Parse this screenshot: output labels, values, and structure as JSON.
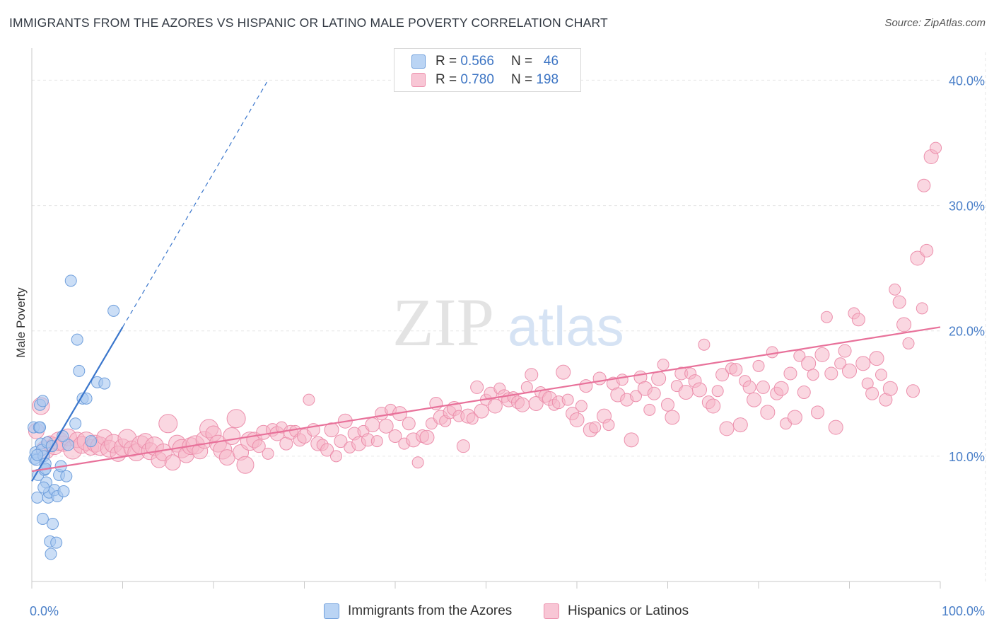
{
  "title": "IMMIGRANTS FROM THE AZORES VS HISPANIC OR LATINO MALE POVERTY CORRELATION CHART",
  "source": "Source: ZipAtlas.com",
  "watermark": {
    "zip": "ZIP",
    "atlas": "atlas"
  },
  "colors": {
    "blue_fill": "#a9c8f0",
    "blue_stroke": "#6f9fdc",
    "blue_line": "#3a76cc",
    "pink_fill": "#f5b6c9",
    "pink_stroke": "#ec8fac",
    "pink_line": "#e8719a",
    "tick_label": "#4a7fc8",
    "grid": "#e6e6e6"
  },
  "legend": {
    "rows": [
      {
        "r_label": "R =",
        "r_value": "0.566",
        "n_label": "N =",
        "n_value": "46"
      },
      {
        "r_label": "R =",
        "r_value": "0.780",
        "n_label": "N =",
        "n_value": "198"
      }
    ]
  },
  "chart_data": {
    "type": "scatter",
    "title": "IMMIGRANTS FROM THE AZORES VS HISPANIC OR LATINO MALE POVERTY CORRELATION CHART",
    "xlabel": "",
    "ylabel": "Male Poverty",
    "xlim": [
      0,
      100
    ],
    "ylim": [
      0,
      42
    ],
    "x_tick_labels": [
      "0.0%",
      "100.0%"
    ],
    "y_ticks": [
      10,
      20,
      30,
      40
    ],
    "y_tick_labels": [
      "10.0%",
      "20.0%",
      "30.0%",
      "40.0%"
    ],
    "grid": true,
    "legend_position": "top-center",
    "series": [
      {
        "name": "Immigrants from the Azores",
        "r": 0.566,
        "n": 46,
        "trend": {
          "x": [
            0,
            10
          ],
          "y": [
            8.0,
            20.3
          ],
          "dashed_to": [
            26,
            40
          ]
        },
        "points": [
          [
            0.2,
            12.3
          ],
          [
            0.3,
            9.8
          ],
          [
            0.4,
            10.3
          ],
          [
            0.5,
            9.7
          ],
          [
            0.6,
            6.7
          ],
          [
            0.7,
            8.5
          ],
          [
            0.8,
            12.3
          ],
          [
            0.9,
            14.1
          ],
          [
            1.0,
            11.0
          ],
          [
            1.1,
            10.5
          ],
          [
            1.2,
            14.4
          ],
          [
            1.3,
            10.0
          ],
          [
            1.4,
            8.9
          ],
          [
            1.5,
            9.4
          ],
          [
            1.6,
            7.9
          ],
          [
            1.7,
            11.1
          ],
          [
            1.8,
            6.7
          ],
          [
            1.9,
            7.1
          ],
          [
            2.0,
            3.2
          ],
          [
            2.1,
            2.2
          ],
          [
            2.3,
            4.6
          ],
          [
            2.5,
            7.3
          ],
          [
            2.7,
            3.1
          ],
          [
            2.8,
            6.8
          ],
          [
            3.0,
            8.5
          ],
          [
            3.2,
            9.2
          ],
          [
            3.5,
            7.2
          ],
          [
            3.8,
            8.4
          ],
          [
            4.0,
            10.9
          ],
          [
            4.3,
            24.0
          ],
          [
            4.8,
            12.6
          ],
          [
            5.0,
            19.3
          ],
          [
            5.2,
            16.8
          ],
          [
            5.6,
            14.6
          ],
          [
            6.0,
            14.6
          ],
          [
            6.5,
            11.2
          ],
          [
            7.2,
            15.9
          ],
          [
            8.0,
            15.8
          ],
          [
            9.0,
            21.6
          ],
          [
            1.2,
            5.0
          ],
          [
            0.6,
            10.1
          ],
          [
            1.5,
            9.0
          ],
          [
            2.2,
            10.8
          ],
          [
            0.9,
            12.3
          ],
          [
            1.3,
            7.5
          ],
          [
            3.4,
            11.6
          ]
        ]
      },
      {
        "name": "Hispanics or Latinos",
        "r": 0.78,
        "n": 198,
        "trend": {
          "x": [
            0,
            100
          ],
          "y": [
            8.8,
            20.3
          ]
        },
        "points": [
          [
            0.5,
            12.0
          ],
          [
            1.0,
            14.0
          ],
          [
            1.5,
            10.5
          ],
          [
            2.0,
            11.0
          ],
          [
            2.5,
            10.8
          ],
          [
            3.0,
            11.2
          ],
          [
            3.5,
            11.0
          ],
          [
            4.0,
            11.5
          ],
          [
            4.5,
            10.5
          ],
          [
            5.0,
            11.3
          ],
          [
            5.5,
            10.9
          ],
          [
            6.0,
            11.2
          ],
          [
            6.5,
            10.7
          ],
          [
            7.0,
            11.0
          ],
          [
            7.5,
            10.8
          ],
          [
            8.0,
            11.5
          ],
          [
            8.5,
            10.6
          ],
          [
            9.0,
            11.0
          ],
          [
            9.5,
            10.2
          ],
          [
            10.0,
            10.7
          ],
          [
            10.5,
            11.4
          ],
          [
            11.0,
            10.6
          ],
          [
            11.5,
            10.3
          ],
          [
            12.0,
            10.9
          ],
          [
            12.5,
            11.2
          ],
          [
            13.0,
            10.4
          ],
          [
            13.5,
            10.8
          ],
          [
            14.0,
            9.7
          ],
          [
            14.5,
            10.3
          ],
          [
            15.0,
            12.6
          ],
          [
            15.5,
            9.5
          ],
          [
            16.0,
            11.0
          ],
          [
            16.5,
            10.6
          ],
          [
            17.0,
            10.1
          ],
          [
            17.5,
            10.8
          ],
          [
            18.0,
            10.9
          ],
          [
            18.5,
            10.4
          ],
          [
            19.0,
            11.3
          ],
          [
            19.5,
            12.2
          ],
          [
            20.0,
            11.8
          ],
          [
            20.5,
            11.0
          ],
          [
            21.0,
            10.5
          ],
          [
            21.5,
            9.9
          ],
          [
            22.0,
            11.6
          ],
          [
            22.5,
            13.0
          ],
          [
            23.0,
            10.3
          ],
          [
            23.5,
            9.3
          ],
          [
            24.0,
            11.2
          ],
          [
            24.5,
            11.3
          ],
          [
            25.0,
            10.8
          ],
          [
            25.5,
            11.9
          ],
          [
            26.0,
            10.2
          ],
          [
            26.5,
            12.1
          ],
          [
            27.0,
            11.8
          ],
          [
            27.5,
            12.3
          ],
          [
            28.0,
            11.0
          ],
          [
            28.5,
            11.9
          ],
          [
            29.0,
            12.0
          ],
          [
            29.5,
            11.3
          ],
          [
            30.0,
            11.6
          ],
          [
            30.5,
            14.5
          ],
          [
            31.0,
            12.1
          ],
          [
            31.5,
            11.0
          ],
          [
            32.0,
            10.9
          ],
          [
            32.5,
            10.5
          ],
          [
            33.0,
            12.1
          ],
          [
            33.5,
            10.0
          ],
          [
            34.0,
            11.2
          ],
          [
            34.5,
            12.8
          ],
          [
            35.0,
            10.7
          ],
          [
            35.5,
            11.8
          ],
          [
            36.0,
            11.0
          ],
          [
            36.5,
            12.0
          ],
          [
            37.0,
            11.3
          ],
          [
            37.5,
            12.5
          ],
          [
            38.0,
            11.2
          ],
          [
            38.5,
            13.4
          ],
          [
            39.0,
            12.4
          ],
          [
            39.5,
            13.7
          ],
          [
            40.0,
            11.6
          ],
          [
            40.5,
            13.4
          ],
          [
            41.0,
            11.0
          ],
          [
            41.5,
            12.6
          ],
          [
            42.0,
            11.3
          ],
          [
            42.5,
            9.5
          ],
          [
            43.0,
            11.6
          ],
          [
            43.5,
            11.5
          ],
          [
            44.0,
            12.6
          ],
          [
            44.5,
            14.2
          ],
          [
            45.0,
            13.1
          ],
          [
            45.5,
            12.8
          ],
          [
            46.0,
            13.5
          ],
          [
            46.5,
            13.8
          ],
          [
            47.0,
            13.2
          ],
          [
            47.5,
            10.8
          ],
          [
            48.0,
            13.2
          ],
          [
            48.5,
            13.0
          ],
          [
            49.0,
            15.5
          ],
          [
            49.5,
            13.6
          ],
          [
            50.0,
            14.5
          ],
          [
            50.5,
            15.0
          ],
          [
            51.0,
            14.0
          ],
          [
            51.5,
            15.4
          ],
          [
            52.0,
            14.8
          ],
          [
            52.5,
            14.5
          ],
          [
            53.0,
            14.7
          ],
          [
            53.5,
            14.3
          ],
          [
            54.0,
            14.1
          ],
          [
            54.5,
            15.5
          ],
          [
            55.0,
            16.5
          ],
          [
            55.5,
            14.2
          ],
          [
            56.0,
            15.1
          ],
          [
            56.5,
            14.8
          ],
          [
            57.0,
            14.6
          ],
          [
            57.5,
            14.1
          ],
          [
            58.0,
            14.3
          ],
          [
            58.5,
            16.7
          ],
          [
            59.0,
            14.5
          ],
          [
            59.5,
            13.4
          ],
          [
            60.0,
            12.9
          ],
          [
            60.5,
            14.0
          ],
          [
            61.0,
            15.6
          ],
          [
            61.5,
            12.1
          ],
          [
            62.0,
            12.3
          ],
          [
            62.5,
            16.2
          ],
          [
            63.0,
            13.2
          ],
          [
            63.5,
            12.5
          ],
          [
            64.0,
            15.8
          ],
          [
            64.5,
            14.9
          ],
          [
            65.0,
            16.1
          ],
          [
            65.5,
            14.5
          ],
          [
            66.0,
            11.3
          ],
          [
            66.5,
            14.8
          ],
          [
            67.0,
            16.3
          ],
          [
            67.5,
            15.4
          ],
          [
            68.0,
            13.7
          ],
          [
            68.5,
            15.0
          ],
          [
            69.0,
            16.2
          ],
          [
            69.5,
            17.3
          ],
          [
            70.0,
            14.1
          ],
          [
            70.5,
            13.1
          ],
          [
            71.0,
            15.6
          ],
          [
            71.5,
            16.6
          ],
          [
            72.0,
            15.1
          ],
          [
            72.5,
            16.6
          ],
          [
            73.0,
            16.0
          ],
          [
            73.5,
            15.3
          ],
          [
            74.0,
            18.9
          ],
          [
            74.5,
            14.3
          ],
          [
            75.0,
            14.0
          ],
          [
            75.5,
            15.2
          ],
          [
            76.0,
            16.5
          ],
          [
            76.5,
            12.2
          ],
          [
            77.0,
            17.0
          ],
          [
            77.5,
            16.9
          ],
          [
            78.0,
            12.5
          ],
          [
            78.5,
            16.0
          ],
          [
            79.0,
            15.5
          ],
          [
            79.5,
            14.5
          ],
          [
            80.0,
            17.2
          ],
          [
            80.5,
            15.5
          ],
          [
            81.0,
            13.5
          ],
          [
            81.5,
            18.3
          ],
          [
            82.0,
            15.0
          ],
          [
            82.5,
            15.4
          ],
          [
            83.0,
            12.6
          ],
          [
            83.5,
            16.6
          ],
          [
            84.0,
            13.1
          ],
          [
            84.5,
            18.0
          ],
          [
            85.0,
            15.1
          ],
          [
            85.5,
            17.4
          ],
          [
            86.0,
            16.5
          ],
          [
            86.5,
            13.5
          ],
          [
            87.0,
            18.1
          ],
          [
            87.5,
            21.1
          ],
          [
            88.0,
            16.6
          ],
          [
            88.5,
            12.3
          ],
          [
            89.0,
            17.4
          ],
          [
            89.5,
            18.4
          ],
          [
            90.0,
            16.8
          ],
          [
            90.5,
            21.4
          ],
          [
            91.0,
            20.9
          ],
          [
            91.5,
            17.4
          ],
          [
            92.0,
            15.8
          ],
          [
            92.5,
            15.0
          ],
          [
            93.0,
            17.8
          ],
          [
            93.5,
            16.5
          ],
          [
            94.0,
            14.5
          ],
          [
            94.5,
            15.4
          ],
          [
            95.0,
            23.3
          ],
          [
            95.5,
            22.3
          ],
          [
            96.0,
            20.5
          ],
          [
            96.5,
            19.0
          ],
          [
            97.0,
            15.2
          ],
          [
            97.5,
            25.8
          ],
          [
            98.0,
            21.8
          ],
          [
            98.5,
            26.4
          ],
          [
            99.0,
            33.9
          ],
          [
            99.5,
            34.6
          ],
          [
            98.2,
            31.6
          ]
        ]
      }
    ],
    "bottom_legend": [
      "Immigrants from the Azores",
      "Hispanics or Latinos"
    ]
  }
}
